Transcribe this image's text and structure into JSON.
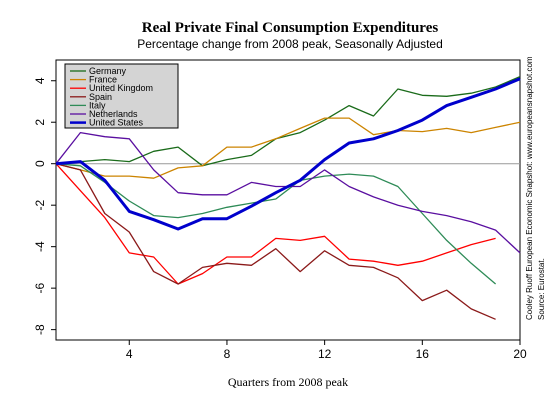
{
  "chart_data": {
    "type": "line",
    "title": "Real Private Final Consumption Expenditures",
    "subtitle": "Percentage change from 2008 peak, Seasonally Adjusted",
    "xlabel": "Quarters from 2008 peak",
    "ylabel": "",
    "xlim": [
      1,
      20
    ],
    "ylim": [
      -8.5,
      5
    ],
    "x_ticks": [
      4,
      8,
      12,
      16,
      20
    ],
    "y_ticks": [
      -8,
      -6,
      -4,
      -2,
      0,
      2,
      4
    ],
    "side_notes": [
      "Cooley Ruoff European Economic Snapshot: www.europeansnapshot.com",
      "Source: Eurostat."
    ],
    "legend_position": "top-left",
    "zero_line": true,
    "series": [
      {
        "name": "Germany",
        "color": "#1a6b1a",
        "width": 1.3,
        "x": [
          1,
          2,
          3,
          4,
          5,
          6,
          7,
          8,
          9,
          10,
          11,
          12,
          13,
          14,
          15,
          16,
          17,
          18,
          19,
          20
        ],
        "y": [
          0,
          0.1,
          0.2,
          0.1,
          0.6,
          0.8,
          -0.1,
          0.2,
          0.4,
          1.2,
          1.5,
          2.1,
          2.8,
          2.3,
          3.6,
          3.3,
          3.25,
          3.4,
          3.7,
          4.2
        ]
      },
      {
        "name": "France",
        "color": "#cc8400",
        "width": 1.3,
        "x": [
          1,
          2,
          3,
          4,
          5,
          6,
          7,
          8,
          9,
          10,
          11,
          12,
          13,
          14,
          15,
          16,
          17,
          18,
          19,
          20
        ],
        "y": [
          0,
          -0.3,
          -0.6,
          -0.6,
          -0.7,
          -0.2,
          -0.1,
          0.8,
          0.8,
          1.2,
          1.7,
          2.2,
          2.2,
          1.4,
          1.6,
          1.55,
          1.7,
          1.5,
          1.75,
          2.0
        ]
      },
      {
        "name": "United Kingdom",
        "color": "#ff0000",
        "width": 1.3,
        "x": [
          1,
          2,
          3,
          4,
          5,
          6,
          7,
          8,
          9,
          10,
          11,
          12,
          13,
          14,
          15,
          16,
          17,
          18,
          19
        ],
        "y": [
          0,
          -1.3,
          -2.6,
          -4.3,
          -4.5,
          -5.8,
          -5.3,
          -4.5,
          -4.5,
          -3.6,
          -3.7,
          -3.5,
          -4.6,
          -4.7,
          -4.9,
          -4.7,
          -4.3,
          -3.9,
          -3.6
        ]
      },
      {
        "name": "Spain",
        "color": "#8b1a1a",
        "width": 1.3,
        "x": [
          1,
          2,
          3,
          4,
          5,
          6,
          7,
          8,
          9,
          10,
          11,
          12,
          13,
          14,
          15,
          16,
          17,
          18,
          19
        ],
        "y": [
          0,
          -0.3,
          -2.4,
          -3.3,
          -5.2,
          -5.8,
          -5.0,
          -4.8,
          -4.9,
          -4.1,
          -5.2,
          -4.2,
          -4.9,
          -5.0,
          -5.5,
          -6.6,
          -6.1,
          -7.0,
          -7.5
        ]
      },
      {
        "name": "Italy",
        "color": "#2e8b57",
        "width": 1.3,
        "x": [
          1,
          2,
          3,
          4,
          5,
          6,
          7,
          8,
          9,
          10,
          11,
          12,
          13,
          14,
          15,
          16,
          17,
          18,
          19
        ],
        "y": [
          0,
          -0.1,
          -0.9,
          -1.8,
          -2.5,
          -2.6,
          -2.4,
          -2.1,
          -1.9,
          -1.7,
          -0.8,
          -0.6,
          -0.5,
          -0.6,
          -1.1,
          -2.4,
          -3.7,
          -4.8,
          -5.8
        ]
      },
      {
        "name": "Netherlands",
        "color": "#5a0fa0",
        "width": 1.3,
        "x": [
          1,
          2,
          3,
          4,
          5,
          6,
          7,
          8,
          9,
          10,
          11,
          12,
          13,
          14,
          15,
          16,
          17,
          18,
          19,
          20
        ],
        "y": [
          0,
          1.5,
          1.3,
          1.2,
          -0.3,
          -1.4,
          -1.5,
          -1.5,
          -0.9,
          -1.1,
          -1.1,
          -0.3,
          -1.1,
          -1.6,
          -2.0,
          -2.3,
          -2.5,
          -2.8,
          -3.2,
          -4.3
        ]
      },
      {
        "name": "United States",
        "color": "#0000cc",
        "width": 3,
        "x": [
          1,
          2,
          3,
          4,
          5,
          6,
          7,
          8,
          9,
          10,
          11,
          12,
          13,
          14,
          15,
          16,
          17,
          18,
          19,
          20
        ],
        "y": [
          0,
          0.1,
          -0.8,
          -2.3,
          -2.7,
          -3.15,
          -2.65,
          -2.65,
          -2.05,
          -1.4,
          -0.8,
          0.2,
          1.0,
          1.2,
          1.6,
          2.1,
          2.8,
          3.2,
          3.6,
          4.1
        ]
      }
    ]
  }
}
